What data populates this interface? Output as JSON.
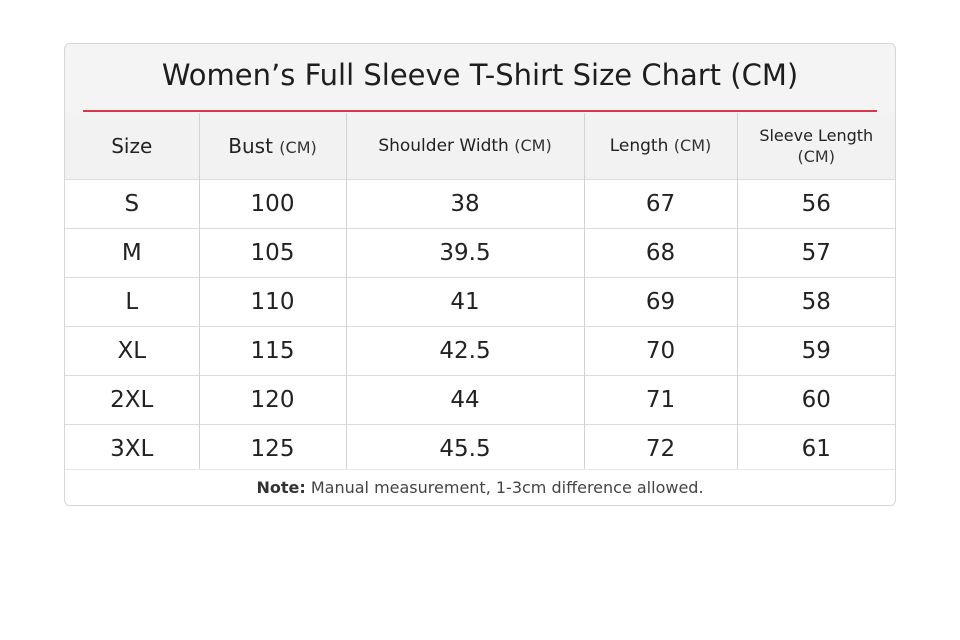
{
  "title": "Women’s Full Sleeve T-Shirt Size Chart (CM)",
  "table": {
    "header": [
      {
        "name": "Size"
      },
      {
        "name": "Bust",
        "unit": "(CM)"
      },
      {
        "name": "Shoulder Width",
        "unit": "(CM)"
      },
      {
        "name": "Length",
        "unit": "(CM)"
      },
      {
        "name": "Sleeve Length",
        "unit": "(CM)"
      }
    ],
    "rows": [
      [
        "S",
        100,
        38,
        67,
        56
      ],
      [
        "M",
        105,
        39.5,
        68,
        57
      ],
      [
        "L",
        110,
        41,
        69,
        58
      ],
      [
        "XL",
        115,
        42.5,
        70,
        59
      ],
      [
        "2XL",
        120,
        44,
        71,
        60
      ],
      [
        "3XL",
        125,
        45.5,
        72,
        61
      ]
    ]
  },
  "note": {
    "label": "Note:",
    "text": "Manual measurement, 1-3cm difference allowed."
  }
}
